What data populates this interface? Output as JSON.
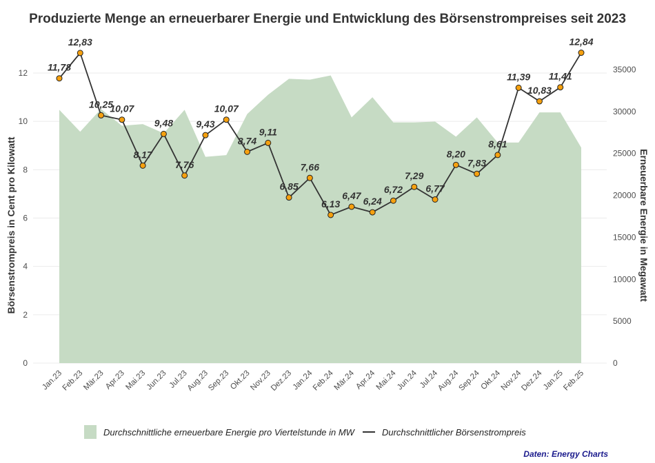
{
  "chart_data": {
    "type": "area+line",
    "title": "Produzierte Menge an erneuerbarer Energie und Entwicklung des Börsenstrompreises seit 2023",
    "categories": [
      "Jan.23",
      "Feb.23",
      "Mär.23",
      "Apr.23",
      "Mai.23",
      "Jun.23",
      "Jul.23",
      "Aug.23",
      "Sep.23",
      "Okt.23",
      "Nov.23",
      "Dez.23",
      "Jan.24",
      "Feb.24",
      "Mär.24",
      "Apr.24",
      "Mai.24",
      "Jun.24",
      "Jul.24",
      "Aug.24",
      "Sep.24",
      "Okt.24",
      "Nov.24",
      "Dez.24",
      "Jan.25",
      "Feb.25"
    ],
    "series": [
      {
        "name": "Durchschnittliche erneuerbare Energie pro Viertelstunde in MW",
        "type": "area",
        "axis": "right",
        "color": "#c6dbc4",
        "values": [
          30200,
          27600,
          30300,
          28300,
          28500,
          27400,
          30200,
          24600,
          24800,
          29700,
          32000,
          33900,
          33800,
          34300,
          29300,
          31700,
          28700,
          28700,
          28800,
          27000,
          29300,
          26300,
          26300,
          29900,
          29900,
          25700
        ]
      },
      {
        "name": "Durchschnittlicher Börsenstrompreis",
        "type": "line",
        "axis": "left",
        "color": "#333333",
        "marker_color": "#f5a00f",
        "values": [
          11.78,
          12.83,
          10.25,
          10.07,
          8.17,
          9.48,
          7.76,
          9.43,
          10.07,
          8.74,
          9.11,
          6.85,
          7.66,
          6.13,
          6.47,
          6.24,
          6.72,
          7.29,
          6.77,
          8.2,
          7.83,
          8.61,
          11.39,
          10.83,
          11.41,
          12.84
        ],
        "labels": [
          "11,78",
          "12,83",
          "10,25",
          "10,07",
          "8,17",
          "9,48",
          "7,76",
          "9,43",
          "10,07",
          "8,74",
          "9,11",
          "6,85",
          "7,66",
          "6,13",
          "6,47",
          "6,24",
          "6,72",
          "7,29",
          "6,77",
          "8,20",
          "7,83",
          "8,61",
          "11,39",
          "10,83",
          "11,41",
          "12,84"
        ]
      }
    ],
    "ylabel": "Börsenstrompreis in Cent pro Kilowatt",
    "ylabel_right": "Erneuerbare Energie in Megawatt",
    "xlabel": "",
    "ylim": [
      0,
      13
    ],
    "ylim_right": [
      0,
      37000
    ],
    "yticks": [
      "0",
      "2",
      "4",
      "6",
      "8",
      "10",
      "12"
    ],
    "yticks_right": [
      "0",
      "5000",
      "10000",
      "15000",
      "20000",
      "25000",
      "30000",
      "35000"
    ],
    "grid": true,
    "legend_position": "bottom"
  },
  "legend": {
    "area_label": "Durchschnittliche erneuerbare Energie pro Viertelstunde in MW",
    "line_label": "Durchschnittlicher Börsenstrompreis"
  },
  "source": "Daten: Energy Charts"
}
